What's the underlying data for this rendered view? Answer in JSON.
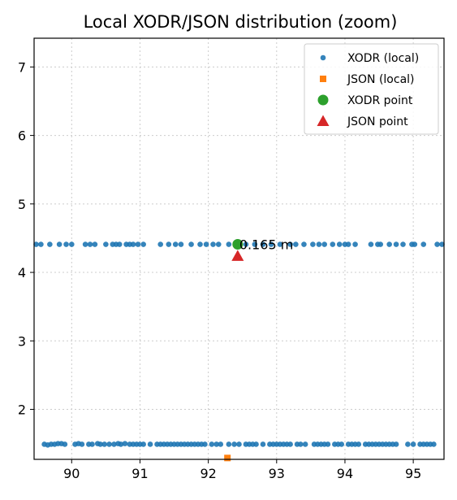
{
  "chart_data": {
    "type": "scatter",
    "title": "Local XODR/JSON distribution (zoom)",
    "xlabel": "",
    "ylabel": "",
    "xlim": [
      89.45,
      95.45
    ],
    "ylim": [
      1.27,
      7.42
    ],
    "xticks": [
      90,
      91,
      92,
      93,
      94,
      95
    ],
    "yticks": [
      2,
      3,
      4,
      5,
      6,
      7
    ],
    "grid": true,
    "legend_position": "top-right",
    "series": [
      {
        "name": "XODR (local)",
        "marker": "circle",
        "color": "#1f77b4",
        "points": [
          [
            89.48,
            4.41
          ],
          [
            89.55,
            4.41
          ],
          [
            89.68,
            4.41
          ],
          [
            89.82,
            4.41
          ],
          [
            89.92,
            4.41
          ],
          [
            90.0,
            4.41
          ],
          [
            90.2,
            4.41
          ],
          [
            90.27,
            4.41
          ],
          [
            90.34,
            4.41
          ],
          [
            90.5,
            4.41
          ],
          [
            90.6,
            4.41
          ],
          [
            90.65,
            4.41
          ],
          [
            90.7,
            4.41
          ],
          [
            90.8,
            4.41
          ],
          [
            90.85,
            4.41
          ],
          [
            90.9,
            4.41
          ],
          [
            90.97,
            4.41
          ],
          [
            91.05,
            4.41
          ],
          [
            91.3,
            4.41
          ],
          [
            91.42,
            4.41
          ],
          [
            91.52,
            4.41
          ],
          [
            91.6,
            4.41
          ],
          [
            91.75,
            4.41
          ],
          [
            91.88,
            4.41
          ],
          [
            91.97,
            4.41
          ],
          [
            92.07,
            4.41
          ],
          [
            92.15,
            4.41
          ],
          [
            92.3,
            4.41
          ],
          [
            92.55,
            4.41
          ],
          [
            92.68,
            4.41
          ],
          [
            92.8,
            4.41
          ],
          [
            92.92,
            4.41
          ],
          [
            93.05,
            4.41
          ],
          [
            93.2,
            4.41
          ],
          [
            93.28,
            4.41
          ],
          [
            93.4,
            4.41
          ],
          [
            93.53,
            4.41
          ],
          [
            93.62,
            4.41
          ],
          [
            93.7,
            4.41
          ],
          [
            93.82,
            4.41
          ],
          [
            93.92,
            4.41
          ],
          [
            94.0,
            4.41
          ],
          [
            94.05,
            4.41
          ],
          [
            94.15,
            4.41
          ],
          [
            94.38,
            4.41
          ],
          [
            94.48,
            4.41
          ],
          [
            94.52,
            4.41
          ],
          [
            94.65,
            4.41
          ],
          [
            94.75,
            4.41
          ],
          [
            94.85,
            4.41
          ],
          [
            94.98,
            4.41
          ],
          [
            95.02,
            4.41
          ],
          [
            95.15,
            4.41
          ],
          [
            95.35,
            4.41
          ],
          [
            95.42,
            4.41
          ],
          [
            89.6,
            1.49
          ],
          [
            89.65,
            1.48
          ],
          [
            89.7,
            1.49
          ],
          [
            89.75,
            1.49
          ],
          [
            89.8,
            1.5
          ],
          [
            89.85,
            1.5
          ],
          [
            89.9,
            1.49
          ],
          [
            90.05,
            1.49
          ],
          [
            90.1,
            1.5
          ],
          [
            90.15,
            1.49
          ],
          [
            90.25,
            1.49
          ],
          [
            90.3,
            1.49
          ],
          [
            90.38,
            1.5
          ],
          [
            90.42,
            1.49
          ],
          [
            90.48,
            1.49
          ],
          [
            90.55,
            1.49
          ],
          [
            90.62,
            1.49
          ],
          [
            90.68,
            1.5
          ],
          [
            90.72,
            1.49
          ],
          [
            90.78,
            1.5
          ],
          [
            90.85,
            1.49
          ],
          [
            90.9,
            1.49
          ],
          [
            90.95,
            1.49
          ],
          [
            91.0,
            1.49
          ],
          [
            91.05,
            1.49
          ],
          [
            91.15,
            1.49
          ],
          [
            91.25,
            1.49
          ],
          [
            91.3,
            1.49
          ],
          [
            91.35,
            1.49
          ],
          [
            91.4,
            1.49
          ],
          [
            91.45,
            1.49
          ],
          [
            91.5,
            1.49
          ],
          [
            91.55,
            1.49
          ],
          [
            91.6,
            1.49
          ],
          [
            91.65,
            1.49
          ],
          [
            91.7,
            1.49
          ],
          [
            91.75,
            1.49
          ],
          [
            91.8,
            1.49
          ],
          [
            91.85,
            1.49
          ],
          [
            91.9,
            1.49
          ],
          [
            91.95,
            1.49
          ],
          [
            92.05,
            1.49
          ],
          [
            92.12,
            1.49
          ],
          [
            92.18,
            1.49
          ],
          [
            92.3,
            1.49
          ],
          [
            92.38,
            1.49
          ],
          [
            92.45,
            1.49
          ],
          [
            92.55,
            1.49
          ],
          [
            92.6,
            1.49
          ],
          [
            92.65,
            1.49
          ],
          [
            92.7,
            1.49
          ],
          [
            92.8,
            1.49
          ],
          [
            92.9,
            1.49
          ],
          [
            92.95,
            1.49
          ],
          [
            93.0,
            1.49
          ],
          [
            93.05,
            1.49
          ],
          [
            93.1,
            1.49
          ],
          [
            93.15,
            1.49
          ],
          [
            93.2,
            1.49
          ],
          [
            93.3,
            1.49
          ],
          [
            93.35,
            1.49
          ],
          [
            93.42,
            1.49
          ],
          [
            93.55,
            1.49
          ],
          [
            93.6,
            1.49
          ],
          [
            93.65,
            1.49
          ],
          [
            93.7,
            1.49
          ],
          [
            93.75,
            1.49
          ],
          [
            93.85,
            1.49
          ],
          [
            93.9,
            1.49
          ],
          [
            93.95,
            1.49
          ],
          [
            94.05,
            1.49
          ],
          [
            94.1,
            1.49
          ],
          [
            94.15,
            1.49
          ],
          [
            94.2,
            1.49
          ],
          [
            94.3,
            1.49
          ],
          [
            94.35,
            1.49
          ],
          [
            94.4,
            1.49
          ],
          [
            94.45,
            1.49
          ],
          [
            94.5,
            1.49
          ],
          [
            94.55,
            1.49
          ],
          [
            94.6,
            1.49
          ],
          [
            94.65,
            1.49
          ],
          [
            94.7,
            1.49
          ],
          [
            94.75,
            1.49
          ],
          [
            94.92,
            1.49
          ],
          [
            95.0,
            1.49
          ],
          [
            95.1,
            1.49
          ],
          [
            95.15,
            1.49
          ],
          [
            95.2,
            1.49
          ],
          [
            95.25,
            1.49
          ],
          [
            95.3,
            1.49
          ]
        ]
      },
      {
        "name": "JSON (local)",
        "marker": "square",
        "color": "#ff7f0e",
        "points": [
          [
            92.28,
            1.29
          ]
        ]
      },
      {
        "name": "XODR point",
        "marker": "circle-large",
        "color": "#2ca02c",
        "points": [
          [
            92.43,
            4.41
          ]
        ]
      },
      {
        "name": "JSON point",
        "marker": "triangle",
        "color": "#d62728",
        "points": [
          [
            92.43,
            4.24
          ]
        ]
      }
    ],
    "annotations": [
      {
        "text": "0.165 m",
        "x": 92.43,
        "y": 4.41
      }
    ]
  }
}
